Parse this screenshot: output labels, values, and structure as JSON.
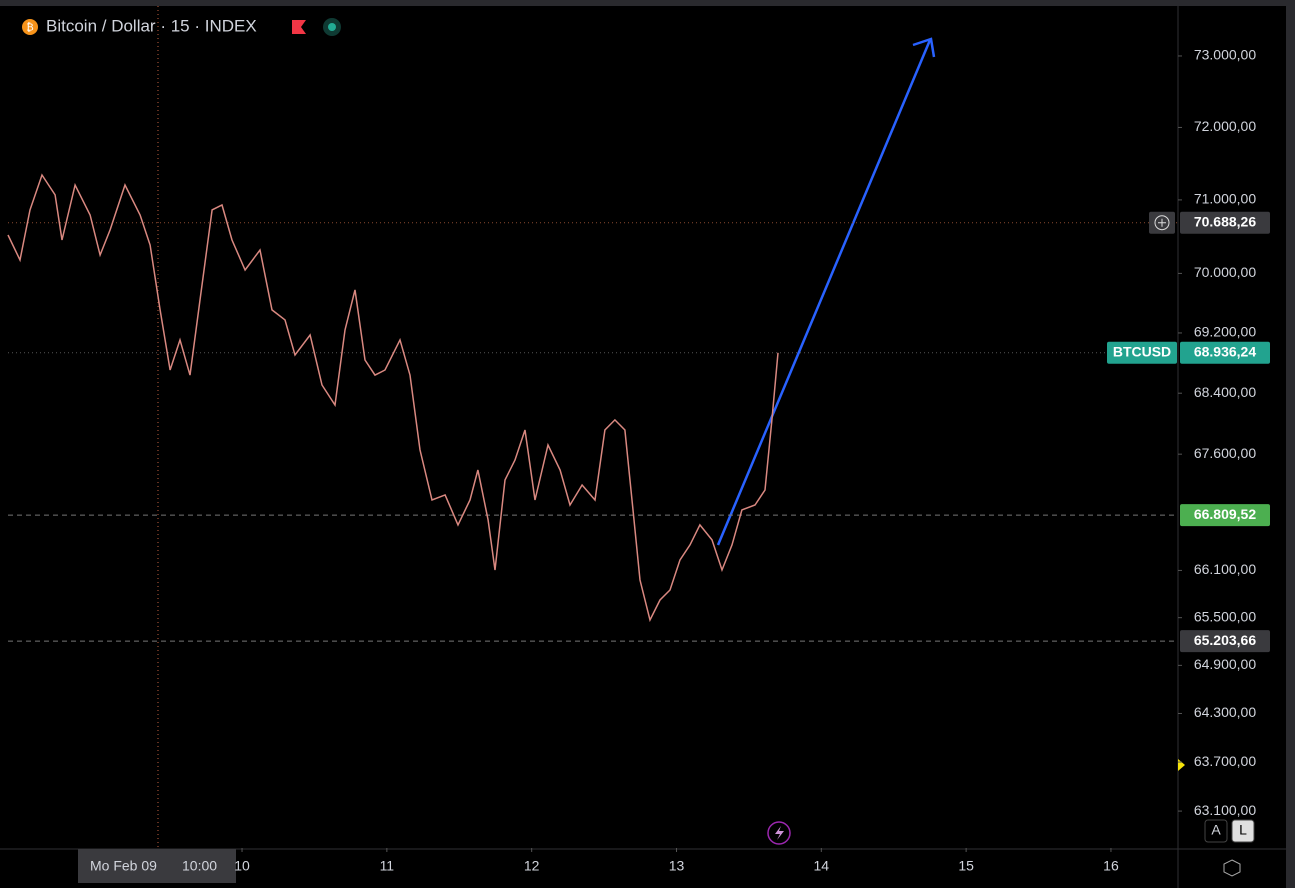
{
  "chart_data": {
    "type": "line",
    "title": "Bitcoin / Dollar · 15 · INDEX",
    "log_scale": true,
    "grid": false,
    "series": [
      {
        "color": "#d98880",
        "x": [
          8.384,
          8.467,
          8.536,
          8.619,
          8.709,
          8.757,
          8.847,
          8.951,
          9.02,
          9.089,
          9.192,
          9.296,
          9.365,
          9.434,
          9.503,
          9.572,
          9.641,
          9.71,
          9.793,
          9.862,
          9.931,
          10.021,
          10.124,
          10.207,
          10.297,
          10.366,
          10.47,
          10.552,
          10.642,
          10.711,
          10.78,
          10.849,
          10.918,
          10.987,
          11.091,
          11.16,
          11.229,
          11.312,
          11.402,
          11.491,
          11.574,
          11.629,
          11.699,
          11.747,
          11.816,
          11.885,
          11.954,
          12.023,
          12.113,
          12.196,
          12.265,
          12.348,
          12.437,
          12.506,
          12.575,
          12.644,
          12.7,
          12.748,
          12.817,
          12.886,
          12.955,
          13.024,
          13.093,
          13.162,
          13.245,
          13.314,
          13.383,
          13.452,
          13.542,
          13.611,
          13.659,
          13.701
        ],
        "values": [
          70521,
          70181,
          70863,
          71342,
          71068,
          70453,
          71205,
          70794,
          70249,
          70590,
          71205,
          70794,
          70385,
          69508,
          68707,
          69107,
          68640,
          69642,
          70863,
          70930,
          70453,
          70046,
          70317,
          69508,
          69374,
          68906,
          69173,
          68508,
          68245,
          69240,
          69777,
          68840,
          68640,
          68707,
          69107,
          68640,
          67655,
          67005,
          67070,
          66683,
          67005,
          67394,
          66747,
          66106,
          67264,
          67524,
          67916,
          67005,
          67720,
          67394,
          66940,
          67199,
          67005,
          67916,
          68048,
          67916,
          66876,
          65978,
          65471,
          65724,
          65851,
          66234,
          66426,
          66683,
          66490,
          66106,
          66426,
          66876,
          66940,
          67134,
          68048,
          68936
        ]
      }
    ],
    "xlim": [
      8.384,
      16.463
    ],
    "xticks": [
      10,
      11,
      12,
      13,
      14,
      15,
      16
    ],
    "ylim": [
      62652,
      73679
    ],
    "yticks": [
      {
        "value": 73000,
        "label": "73.000,00"
      },
      {
        "value": 72000,
        "label": "72.000,00"
      },
      {
        "value": 71000,
        "label": "71.000,00"
      },
      {
        "value": 70000,
        "label": "70.000,00"
      },
      {
        "value": 69200,
        "label": "69.200,00"
      },
      {
        "value": 68400,
        "label": "68.400,00"
      },
      {
        "value": 67600,
        "label": "67.600,00"
      },
      {
        "value": 66100,
        "label": "66.100,00"
      },
      {
        "value": 65500,
        "label": "65.500,00"
      },
      {
        "value": 64900,
        "label": "64.900,00"
      },
      {
        "value": 64300,
        "label": "64.300,00"
      },
      {
        "value": 63700,
        "label": "63.700,00"
      },
      {
        "value": 63100,
        "label": "63.100,00"
      }
    ],
    "levels": [
      {
        "value": 70688.26,
        "label": "70.688,26",
        "color": "#3a3a3e",
        "line": "#8a4a30"
      },
      {
        "name": "BTCUSD",
        "value": 68936.24,
        "label": "68.936,24",
        "color": "#22a38f",
        "line": "#555"
      },
      {
        "value": 66809.52,
        "label": "66.809,52",
        "color": "#4caf50",
        "line": "#777"
      },
      {
        "value": 65203.66,
        "label": "65.203,66",
        "color": "#3a3a3e",
        "line": "#777"
      }
    ],
    "crosshair_date": "Mo Feb 09",
    "crosshair_time": "10:00",
    "buttons": [
      "A",
      "L"
    ]
  }
}
